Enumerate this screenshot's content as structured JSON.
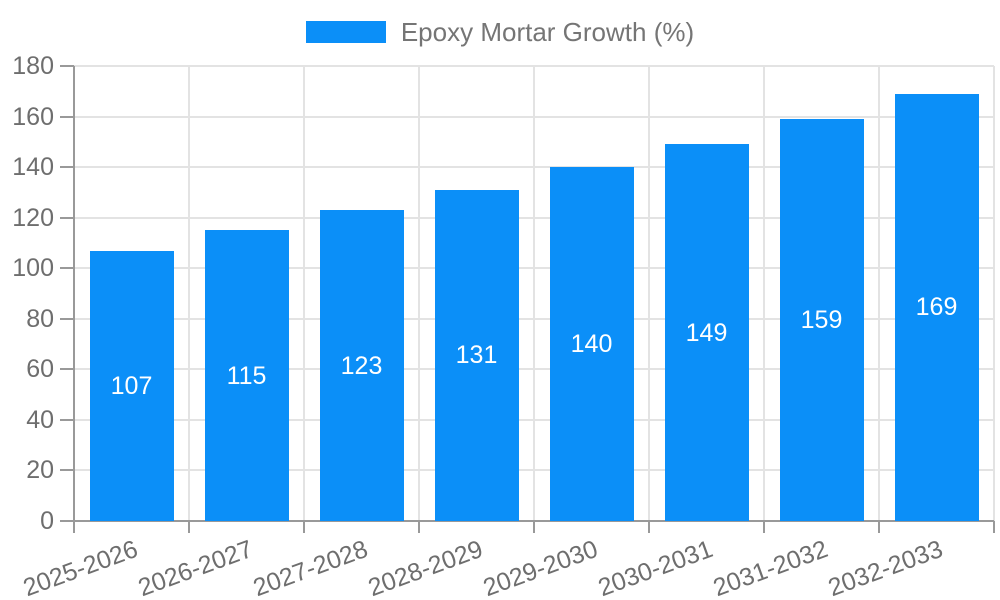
{
  "colors": {
    "bar": "#0B8FF8",
    "grid": "#E3E3E3",
    "axis_line": "#999999",
    "axis_text": "#6E6E6E",
    "legend_text": "#757575",
    "value_label": "#FFFFFF",
    "background": "#FFFFFF"
  },
  "chart_data": {
    "type": "bar",
    "title": "",
    "xlabel": "",
    "ylabel": "",
    "categories": [
      "2025-2026",
      "2026-2027",
      "2027-2028",
      "2028-2029",
      "2029-2030",
      "2030-2031",
      "2031-2032",
      "2032-2033"
    ],
    "series": [
      {
        "name": "Epoxy Mortar Growth (%)",
        "values": [
          107,
          115,
          123,
          131,
          140,
          149,
          159,
          169
        ],
        "color": "#0B8FF8"
      }
    ],
    "ylim": [
      0,
      180
    ],
    "ytick_step": 20,
    "yticks": [
      0,
      20,
      40,
      60,
      80,
      100,
      120,
      140,
      160,
      180
    ],
    "grid": true,
    "legend_position": "top-center",
    "value_labels": "inside-middle",
    "value_label_color": "#FFFFFF",
    "x_label_rotation_deg": -20
  }
}
